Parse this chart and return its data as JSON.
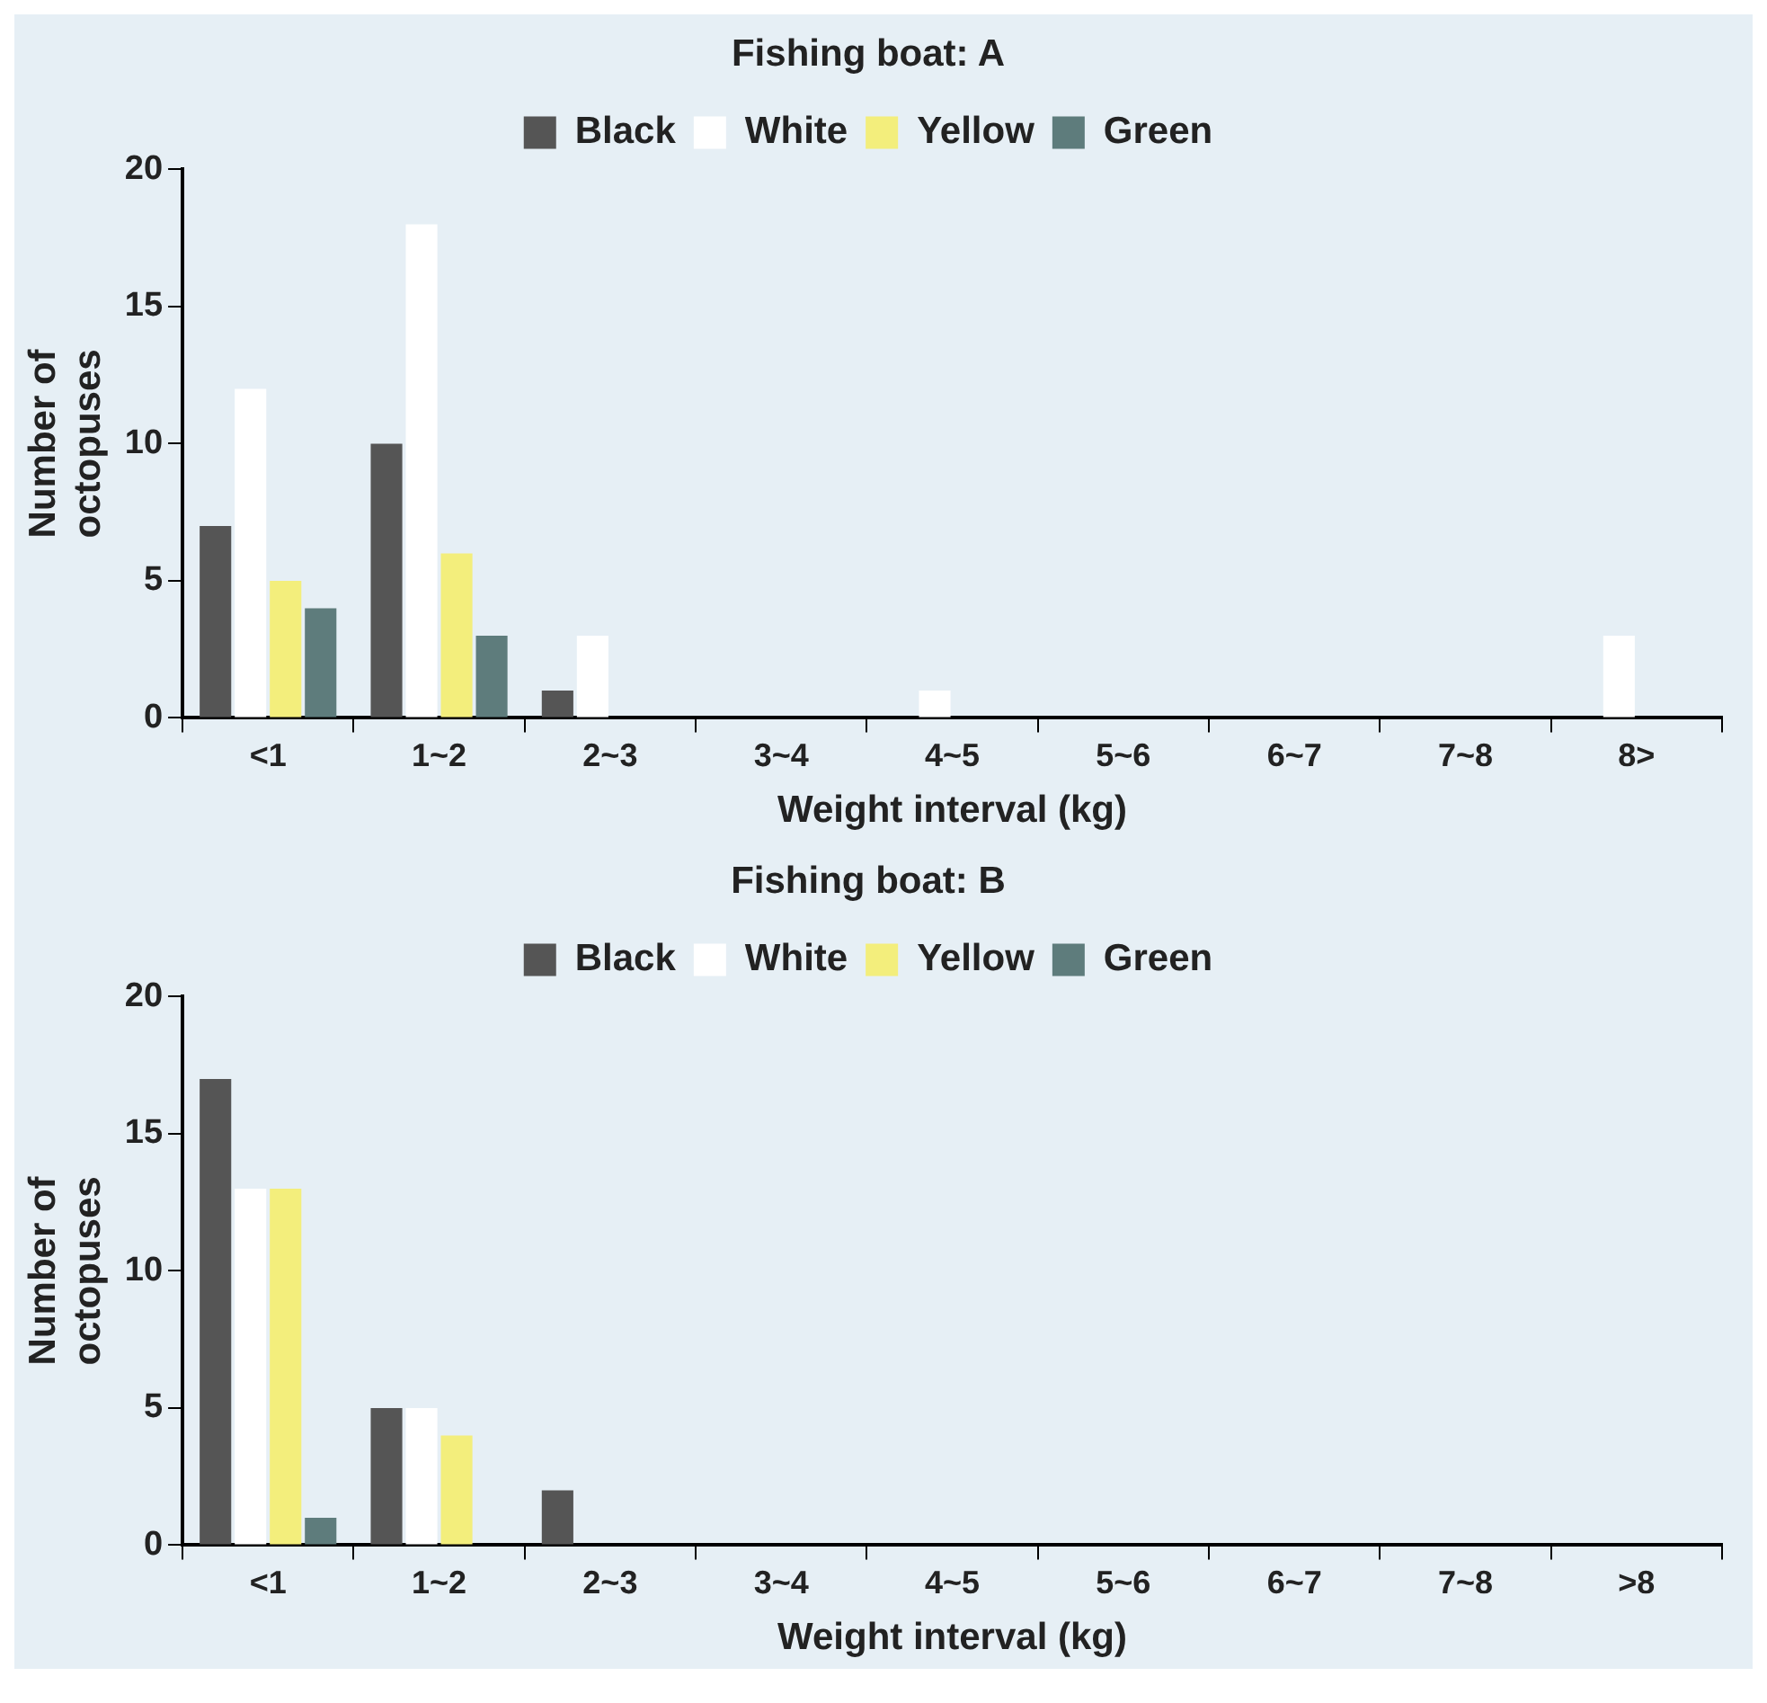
{
  "chart_data": [
    {
      "type": "bar",
      "title": "Fishing boat: A",
      "xlabel": "Weight interval (kg)",
      "ylabel": "Number of octopuses",
      "categories": [
        "<1",
        "1~2",
        "2~3",
        "3~4",
        "4~5",
        "5~6",
        "6~7",
        "7~8",
        "8>"
      ],
      "series": [
        {
          "name": "Black",
          "color": "#555555",
          "values": [
            7,
            10,
            1,
            0,
            0,
            0,
            0,
            0,
            0
          ]
        },
        {
          "name": "White",
          "color": "#ffffff",
          "values": [
            12,
            18,
            3,
            0,
            1,
            0,
            0,
            0,
            3
          ]
        },
        {
          "name": "Yellow",
          "color": "#f3ee7c",
          "values": [
            5,
            6,
            0,
            0,
            0,
            0,
            0,
            0,
            0
          ]
        },
        {
          "name": "Green",
          "color": "#5e7c7c",
          "values": [
            4,
            3,
            0,
            0,
            0,
            0,
            0,
            0,
            0
          ]
        }
      ],
      "ylim": [
        0,
        20
      ],
      "yticks": [
        0,
        5,
        10,
        15,
        20
      ],
      "grid": false,
      "legend": "top"
    },
    {
      "type": "bar",
      "title": "Fishing boat: B",
      "xlabel": "Weight interval (kg)",
      "ylabel": "Number of octopuses",
      "categories": [
        "<1",
        "1~2",
        "2~3",
        "3~4",
        "4~5",
        "5~6",
        "6~7",
        "7~8",
        ">8"
      ],
      "series": [
        {
          "name": "Black",
          "color": "#555555",
          "values": [
            17,
            5,
            2,
            0,
            0,
            0,
            0,
            0,
            0
          ]
        },
        {
          "name": "White",
          "color": "#ffffff",
          "values": [
            13,
            5,
            0,
            0,
            0,
            0,
            0,
            0,
            0
          ]
        },
        {
          "name": "Yellow",
          "color": "#f3ee7c",
          "values": [
            13,
            4,
            0,
            0,
            0,
            0,
            0,
            0,
            0
          ]
        },
        {
          "name": "Green",
          "color": "#5e7c7c",
          "values": [
            1,
            0,
            0,
            0,
            0,
            0,
            0,
            0,
            0
          ]
        }
      ],
      "ylim": [
        0,
        20
      ],
      "yticks": [
        0,
        5,
        10,
        15,
        20
      ],
      "grid": false,
      "legend": "top"
    }
  ]
}
